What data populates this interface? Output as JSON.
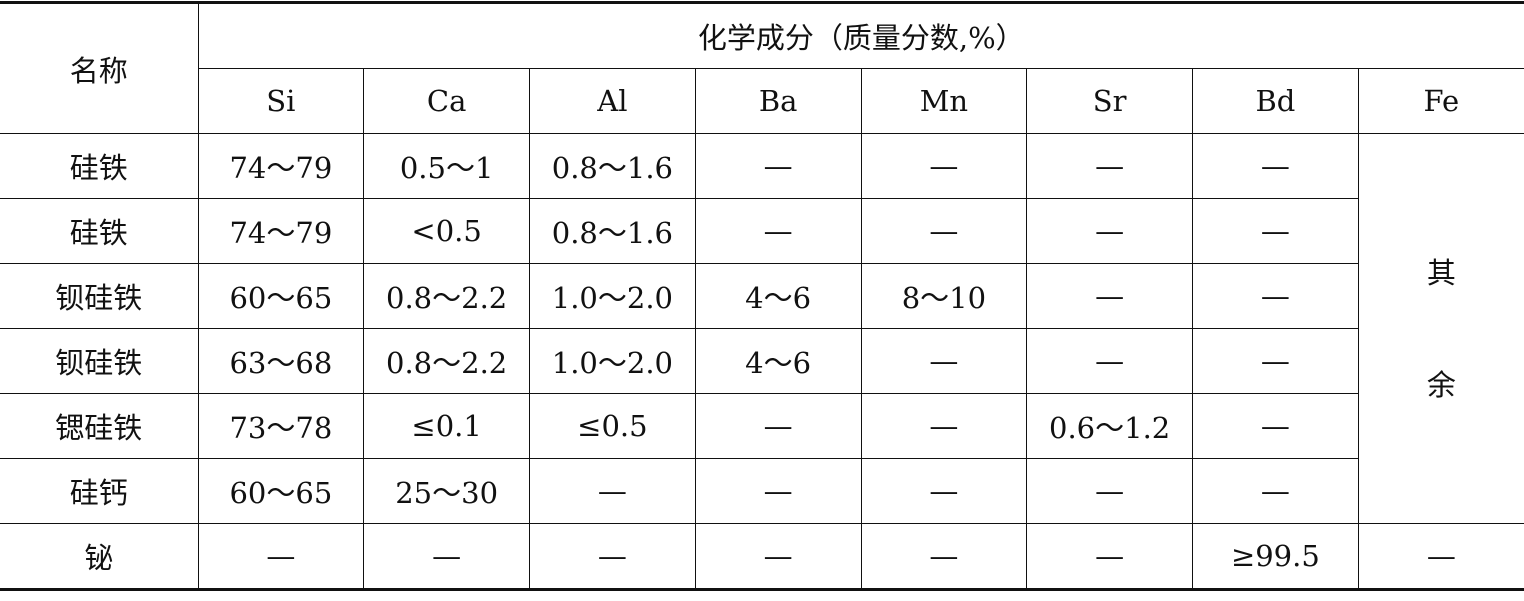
{
  "table": {
    "name_header": "名称",
    "group_header": "化学成分（质量分数,%）",
    "columns": [
      "Si",
      "Ca",
      "Al",
      "Ba",
      "Mn",
      "Sr",
      "Bd",
      "Fe"
    ],
    "rows": [
      {
        "name": "硅铁",
        "values": [
          "74～79",
          "0.5～1",
          "0.8～1.6",
          "—",
          "—",
          "—",
          "—"
        ]
      },
      {
        "name": "硅铁",
        "values": [
          "74～79",
          "<0.5",
          "0.8～1.6",
          "—",
          "—",
          "—",
          "—"
        ]
      },
      {
        "name": "钡硅铁",
        "values": [
          "60～65",
          "0.8～2.2",
          "1.0～2.0",
          "4～6",
          "8～10",
          "—",
          "—"
        ]
      },
      {
        "name": "钡硅铁",
        "values": [
          "63～68",
          "0.8～2.2",
          "1.0～2.0",
          "4～6",
          "—",
          "—",
          "—"
        ]
      },
      {
        "name": "锶硅铁",
        "values": [
          "73～78",
          "≤0.1",
          "≤0.5",
          "—",
          "—",
          "0.6～1.2",
          "—"
        ]
      },
      {
        "name": "硅钙",
        "values": [
          "60～65",
          "25～30",
          "—",
          "—",
          "—",
          "—",
          "—"
        ]
      },
      {
        "name": "铋",
        "values": [
          "—",
          "—",
          "—",
          "—",
          "—",
          "—",
          "≥99.5",
          "—"
        ]
      }
    ],
    "fe_merged": [
      "其",
      "余"
    ]
  }
}
